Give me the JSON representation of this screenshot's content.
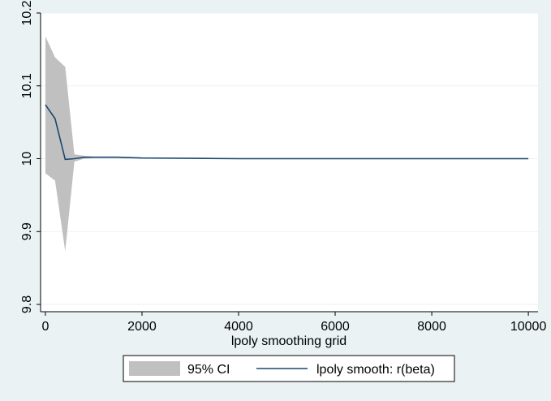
{
  "chart_data": {
    "type": "area",
    "title": "",
    "xlabel": "lpoly smoothing grid",
    "ylabel": "",
    "xlim": [
      -100,
      10200
    ],
    "ylim": [
      9.79,
      10.2
    ],
    "xticks": [
      0,
      2000,
      4000,
      6000,
      8000,
      10000
    ],
    "xtick_labels": [
      "0",
      "2000",
      "4000",
      "6000",
      "8000",
      "10000"
    ],
    "yticks": [
      9.8,
      9.9,
      10,
      10.1,
      10.2
    ],
    "ytick_labels": [
      "9.8",
      "9.9",
      "10",
      "10.1",
      "10.2"
    ],
    "grid": true,
    "legend_position": "bottom",
    "series": [
      {
        "name": "95% CI",
        "kind": "band",
        "color": "#c0c0c0",
        "x": [
          0,
          200,
          410,
          600,
          800,
          1000,
          1500,
          2000,
          4000,
          6000,
          8000,
          10000
        ],
        "lower": [
          9.98,
          9.97,
          9.873,
          9.996,
          10.0,
          10.001,
          10.001,
          10.0,
          10.0,
          10.0,
          10.0,
          10.0
        ],
        "upper": [
          10.168,
          10.139,
          10.126,
          10.006,
          10.004,
          10.003,
          10.003,
          10.002,
          10.001,
          10.001,
          10.001,
          10.001
        ]
      },
      {
        "name": "lpoly smooth: r(beta)",
        "kind": "line",
        "color": "#1a476f",
        "x": [
          0,
          200,
          410,
          600,
          800,
          1000,
          1500,
          2000,
          4000,
          6000,
          8000,
          10000
        ],
        "y": [
          10.074,
          10.055,
          9.999,
          10.0,
          10.002,
          10.002,
          10.002,
          10.001,
          10.0,
          10.0,
          10.0,
          10.0
        ]
      }
    ]
  },
  "legend": {
    "ci_label": "95% CI",
    "line_label": "lpoly smooth: r(beta)"
  },
  "colors": {
    "background": "#eaf2f3",
    "plot_background": "#ffffff",
    "grid": "#eaf2f3",
    "ci_fill": "#c0c0c0",
    "line": "#1a476f"
  }
}
